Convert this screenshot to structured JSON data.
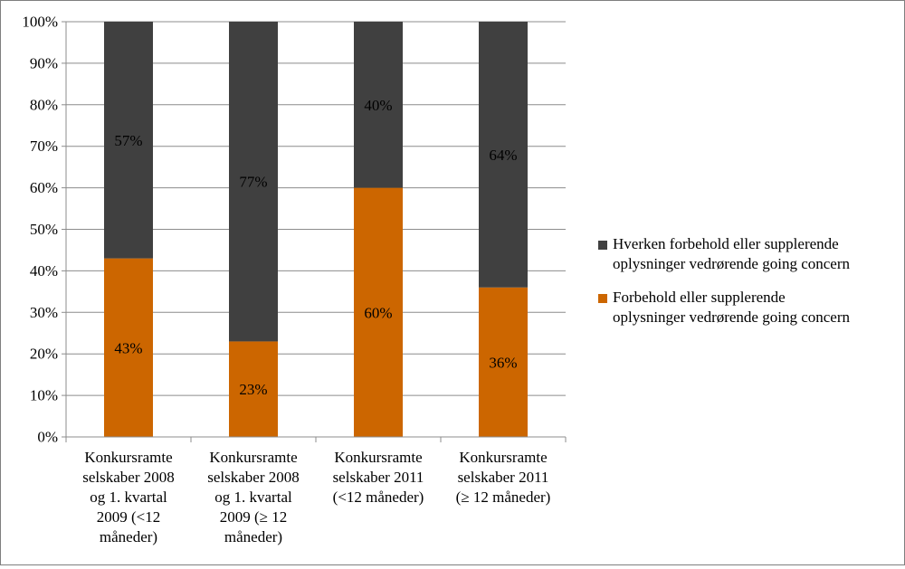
{
  "chart_data": {
    "type": "bar",
    "stacked": true,
    "title": "",
    "xlabel": "",
    "ylabel": "",
    "ylim": [
      0,
      100
    ],
    "y_ticks": [
      "0%",
      "10%",
      "20%",
      "30%",
      "40%",
      "50%",
      "60%",
      "70%",
      "80%",
      "90%",
      "100%"
    ],
    "grid": true,
    "legend_position": "right",
    "categories": [
      [
        "Konkursramte",
        "selskaber 2008",
        "og 1. kvartal",
        "2009 (<12",
        "måneder)"
      ],
      [
        "Konkursramte",
        "selskaber 2008",
        "og 1. kvartal",
        "2009 (≥ 12",
        "måneder)"
      ],
      [
        "Konkursramte",
        "selskaber 2011",
        "(<12 måneder)"
      ],
      [
        "Konkursramte",
        "selskaber 2011",
        "(≥ 12 måneder)"
      ]
    ],
    "series": [
      {
        "name_lines": [
          "Forbehold eller supplerende",
          "oplysninger vedrørende going concern"
        ],
        "color": "#cc6600",
        "values": [
          43,
          23,
          60,
          36
        ],
        "labels": [
          "43%",
          "23%",
          "60%",
          "36%"
        ]
      },
      {
        "name_lines": [
          "Hverken forbehold eller supplerende",
          "oplysninger vedrørende going concern"
        ],
        "color": "#404040",
        "values": [
          57,
          77,
          40,
          64
        ],
        "labels": [
          "57%",
          "77%",
          "40%",
          "64%"
        ]
      }
    ]
  }
}
